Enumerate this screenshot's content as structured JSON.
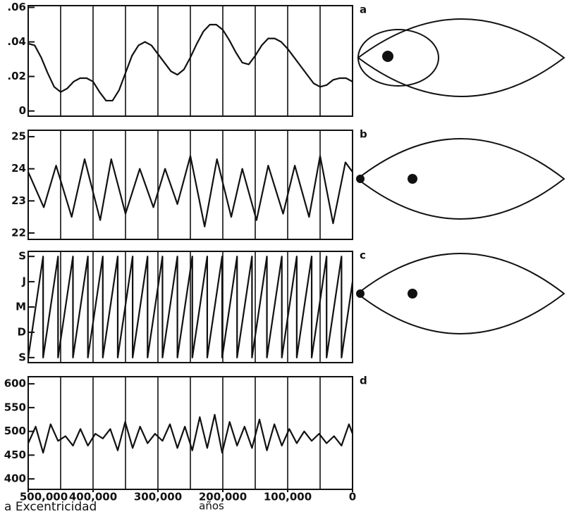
{
  "chart_data": [
    {
      "type": "line",
      "label": "a",
      "color": "#111111",
      "x": [
        500000,
        490000,
        480000,
        470000,
        460000,
        450000,
        440000,
        430000,
        420000,
        410000,
        400000,
        390000,
        380000,
        370000,
        360000,
        350000,
        340000,
        330000,
        320000,
        310000,
        300000,
        290000,
        280000,
        270000,
        260000,
        250000,
        240000,
        230000,
        220000,
        210000,
        200000,
        190000,
        180000,
        170000,
        160000,
        150000,
        140000,
        130000,
        120000,
        110000,
        100000,
        90000,
        80000,
        70000,
        60000,
        50000,
        40000,
        30000,
        20000,
        10000,
        0
      ],
      "values": [
        0.039,
        0.038,
        0.031,
        0.022,
        0.014,
        0.011,
        0.013,
        0.017,
        0.019,
        0.019,
        0.017,
        0.011,
        0.006,
        0.006,
        0.012,
        0.022,
        0.032,
        0.038,
        0.04,
        0.038,
        0.033,
        0.028,
        0.023,
        0.021,
        0.024,
        0.031,
        0.039,
        0.046,
        0.05,
        0.05,
        0.047,
        0.041,
        0.034,
        0.028,
        0.027,
        0.032,
        0.038,
        0.042,
        0.042,
        0.04,
        0.036,
        0.031,
        0.026,
        0.021,
        0.016,
        0.014,
        0.015,
        0.018,
        0.019,
        0.019,
        0.017
      ],
      "xlim": [
        500000,
        0
      ],
      "xgrid": [
        450000,
        400000,
        350000,
        300000,
        250000,
        200000,
        150000,
        100000,
        50000
      ],
      "ylim": [
        -0.003,
        0.061
      ],
      "yticks": [
        {
          "value": 0,
          "label": "0"
        },
        {
          "value": 0.02,
          "label": ".02"
        },
        {
          "value": 0.04,
          "label": ".04"
        },
        {
          "value": 0.06,
          "label": ".06"
        }
      ]
    },
    {
      "type": "line",
      "label": "b",
      "color": "#111111",
      "x": [
        500000,
        476000,
        457000,
        433000,
        413000,
        389000,
        372000,
        350000,
        328000,
        307000,
        289000,
        270000,
        250000,
        228000,
        209000,
        187000,
        170000,
        148000,
        130000,
        107000,
        89000,
        67000,
        50000,
        30000,
        11000,
        0
      ],
      "values": [
        23.9,
        22.8,
        24.1,
        22.5,
        24.3,
        22.4,
        24.3,
        22.6,
        24.0,
        22.8,
        24.0,
        22.9,
        24.4,
        22.2,
        24.3,
        22.5,
        24.0,
        22.4,
        24.1,
        22.6,
        24.1,
        22.5,
        24.4,
        22.3,
        24.2,
        23.9
      ],
      "xlim": [
        500000,
        0
      ],
      "xgrid": [
        450000,
        400000,
        350000,
        300000,
        250000,
        200000,
        150000,
        100000,
        50000
      ],
      "ylim": [
        21.8,
        25.2
      ],
      "yticks": [
        22,
        23,
        24,
        25
      ]
    },
    {
      "type": "line",
      "label": "c",
      "color": "#111111",
      "x": [
        500000,
        477000,
        477000,
        454000,
        454000,
        431000,
        431000,
        408000,
        408000,
        385000,
        385000,
        362000,
        362000,
        339000,
        339000,
        316000,
        316000,
        293000,
        293000,
        270000,
        270000,
        247000,
        247000,
        224000,
        224000,
        201000,
        201000,
        178000,
        178000,
        155000,
        155000,
        132000,
        132000,
        109000,
        109000,
        86000,
        86000,
        63000,
        63000,
        40000,
        40000,
        17000,
        17000,
        0
      ],
      "values": [
        0,
        4,
        0,
        4,
        0,
        4,
        0,
        4,
        0,
        4,
        0,
        4,
        0,
        4,
        0,
        4,
        0,
        4,
        0,
        4,
        0,
        4,
        0,
        4,
        0,
        4,
        0,
        4,
        0,
        4,
        0,
        4,
        0,
        4,
        0,
        4,
        0,
        4,
        0,
        4,
        0,
        4,
        0,
        3
      ],
      "xlim": [
        500000,
        0
      ],
      "xgrid": [
        450000,
        400000,
        350000,
        300000,
        250000,
        200000,
        150000,
        100000,
        50000
      ],
      "ylim": [
        -0.2,
        4.2
      ],
      "yticks": [
        {
          "value": 0,
          "label": "S"
        },
        {
          "value": 1,
          "label": "D"
        },
        {
          "value": 2,
          "label": "M"
        },
        {
          "value": 3,
          "label": "J"
        },
        {
          "value": 4,
          "label": "S"
        }
      ]
    },
    {
      "type": "line",
      "label": "d",
      "color": "#111111",
      "xlabel": "años",
      "x": [
        500000,
        488500,
        477000,
        465500,
        454000,
        442500,
        431000,
        419500,
        408000,
        396500,
        385000,
        373500,
        362000,
        350500,
        339000,
        327500,
        316000,
        304500,
        293000,
        281500,
        270000,
        258500,
        247000,
        235500,
        224000,
        212500,
        201000,
        189500,
        178000,
        166500,
        155000,
        143500,
        132000,
        120500,
        109000,
        97500,
        86000,
        74500,
        63000,
        51500,
        40000,
        28500,
        17000,
        5500,
        0
      ],
      "values": [
        475,
        510,
        455,
        515,
        480,
        490,
        470,
        505,
        470,
        495,
        485,
        505,
        460,
        520,
        465,
        510,
        475,
        495,
        480,
        515,
        465,
        510,
        460,
        530,
        465,
        535,
        455,
        520,
        470,
        510,
        465,
        525,
        460,
        515,
        470,
        505,
        475,
        500,
        480,
        495,
        475,
        490,
        470,
        515,
        495
      ],
      "xlim": [
        500000,
        0
      ],
      "xgrid": [
        450000,
        400000,
        350000,
        300000,
        250000,
        200000,
        150000,
        100000,
        50000
      ],
      "xticks": [
        {
          "value": 500000,
          "label": "500,000"
        },
        {
          "value": 400000,
          "label": "400,000"
        },
        {
          "value": 300000,
          "label": "300,000"
        },
        {
          "value": 200000,
          "label": "200,000"
        },
        {
          "value": 100000,
          "label": "100,000"
        },
        0
      ],
      "ylim": [
        378,
        615
      ],
      "yticks": [
        400,
        450,
        500,
        550,
        600
      ]
    }
  ],
  "footnote": "a Excentricidad"
}
